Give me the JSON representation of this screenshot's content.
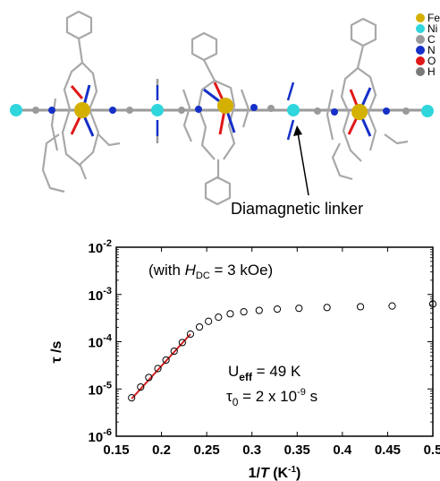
{
  "structure": {
    "legend": [
      {
        "symbol": "Fe",
        "color": "#d4b000"
      },
      {
        "symbol": "Ni",
        "color": "#2fd6dc"
      },
      {
        "symbol": "C",
        "color": "#9a9a9a"
      },
      {
        "symbol": "N",
        "color": "#1530c8"
      },
      {
        "symbol": "O",
        "color": "#e01818"
      },
      {
        "symbol": "H",
        "color": "#7a7a7a"
      }
    ],
    "linker_label": "Diamagnetic linker"
  },
  "chart_data": {
    "type": "scatter",
    "xlabel_italic": "T",
    "xlabel_prefix": "1/",
    "xlabel_suffix_pre": " (K",
    "xlabel_sup": "-1",
    "xlabel_suffix_post": ")",
    "ylabel": "τ /s",
    "x_ticks": [
      "0.15",
      "0.2",
      "0.25",
      "0.3",
      "0.35",
      "0.4",
      "0.45",
      "0.5"
    ],
    "x_range": [
      0.15,
      0.5
    ],
    "y_scale": "log",
    "y_range": [
      1e-06,
      0.01
    ],
    "y_ticks": [
      {
        "base": "10",
        "exp": "-2",
        "value": 0.01
      },
      {
        "base": "10",
        "exp": "-3",
        "value": 0.001
      },
      {
        "base": "10",
        "exp": "-4",
        "value": 0.0001
      },
      {
        "base": "10",
        "exp": "-5",
        "value": 1e-05
      },
      {
        "base": "10",
        "exp": "-6",
        "value": 1e-06
      }
    ],
    "series": [
      {
        "marker": "open-circle",
        "x": [
          0.167,
          0.177,
          0.186,
          0.196,
          0.205,
          0.214,
          0.223,
          0.232,
          0.242,
          0.252,
          0.263,
          0.276,
          0.291,
          0.308,
          0.328,
          0.352,
          0.383,
          0.42,
          0.455,
          0.5
        ],
        "y": [
          6.5e-06,
          1.1e-05,
          1.75e-05,
          2.7e-05,
          4.1e-05,
          6.3e-05,
          9.6e-05,
          0.000145,
          0.000205,
          0.00027,
          0.00033,
          0.00039,
          0.00043,
          0.00046,
          0.00049,
          0.00051,
          0.00053,
          0.00055,
          0.00057,
          0.00063
        ]
      }
    ],
    "fit_line": {
      "x": [
        0.167,
        0.232
      ],
      "y": [
        6.2e-06,
        0.000145
      ],
      "color": "#d42020"
    },
    "annotations": {
      "field": {
        "pre": "(with ",
        "h": "H",
        "h_sub": "DC",
        "post": " = 3 kOe)"
      },
      "ueff": {
        "pre": "U",
        "sub": "eff",
        "post": " = 49 K"
      },
      "tau0": {
        "pre": "τ",
        "sub": "0",
        "post": " = 2 x 10",
        "sup": "-9",
        "unit": " s"
      }
    }
  }
}
